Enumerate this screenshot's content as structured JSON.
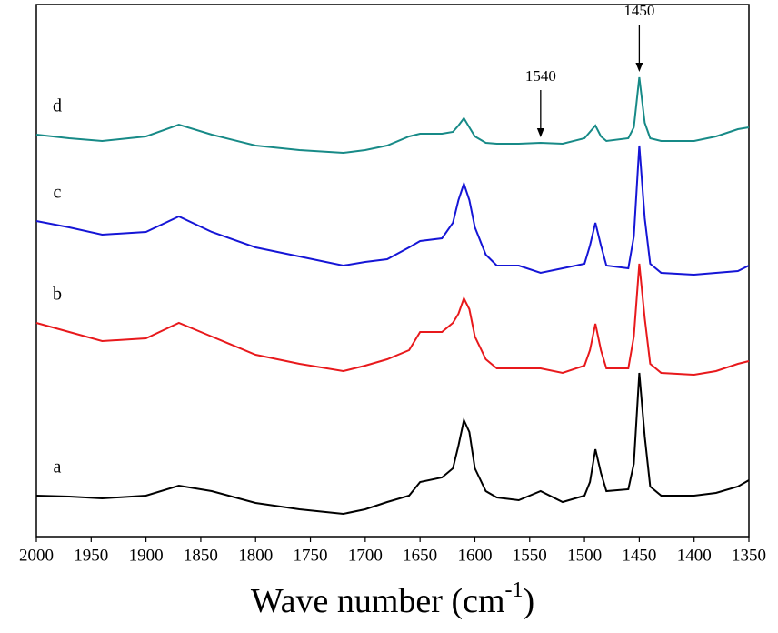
{
  "chart_data": {
    "type": "line",
    "x_label": [
      "Wave number (cm",
      "-1",
      ")"
    ],
    "x": [
      2000,
      1970,
      1940,
      1900,
      1870,
      1840,
      1800,
      1760,
      1720,
      1700,
      1680,
      1660,
      1650,
      1630,
      1620,
      1615,
      1610,
      1605,
      1600,
      1590,
      1580,
      1560,
      1540,
      1520,
      1500,
      1495,
      1490,
      1485,
      1480,
      1460,
      1455,
      1450,
      1445,
      1440,
      1430,
      1400,
      1380,
      1360,
      1350
    ],
    "series": [
      {
        "name": "a",
        "color": "#000000",
        "values": [
          45,
          44,
          42,
          45,
          56,
          50,
          37,
          30,
          25,
          30,
          38,
          45,
          60,
          65,
          75,
          100,
          128,
          115,
          75,
          50,
          43,
          40,
          50,
          38,
          45,
          60,
          96,
          70,
          50,
          52,
          80,
          180,
          110,
          55,
          45,
          45,
          48,
          55,
          62
        ]
      },
      {
        "name": "b",
        "color": "#e8191c",
        "values": [
          235,
          225,
          215,
          218,
          235,
          220,
          200,
          190,
          182,
          188,
          195,
          205,
          225,
          225,
          235,
          245,
          262,
          250,
          220,
          195,
          185,
          185,
          185,
          180,
          188,
          205,
          234,
          205,
          185,
          185,
          220,
          300,
          240,
          190,
          180,
          178,
          182,
          190,
          193
        ]
      },
      {
        "name": "c",
        "color": "#1515d6",
        "values": [
          347,
          340,
          332,
          335,
          352,
          335,
          318,
          308,
          298,
          302,
          305,
          318,
          325,
          328,
          345,
          370,
          388,
          370,
          340,
          310,
          298,
          298,
          290,
          295,
          300,
          320,
          345,
          320,
          298,
          295,
          330,
          430,
          350,
          300,
          290,
          288,
          290,
          292,
          298
        ]
      },
      {
        "name": "d",
        "color": "#178a87",
        "values": [
          442,
          438,
          435,
          440,
          453,
          442,
          430,
          425,
          422,
          425,
          430,
          440,
          443,
          443,
          445,
          452,
          460,
          450,
          440,
          433,
          432,
          432,
          433,
          432,
          438,
          445,
          452,
          440,
          435,
          438,
          450,
          505,
          455,
          438,
          435,
          435,
          440,
          448,
          450
        ]
      }
    ],
    "annotations": [
      {
        "text": "1540",
        "x": 1540
      },
      {
        "text": "1450",
        "x": 1450
      }
    ],
    "xlim": [
      2000,
      1350
    ],
    "xticks": [
      2000,
      1950,
      1900,
      1850,
      1800,
      1750,
      1700,
      1650,
      1600,
      1550,
      1500,
      1450,
      1400,
      1350
    ],
    "ylim": [
      0,
      585
    ]
  }
}
